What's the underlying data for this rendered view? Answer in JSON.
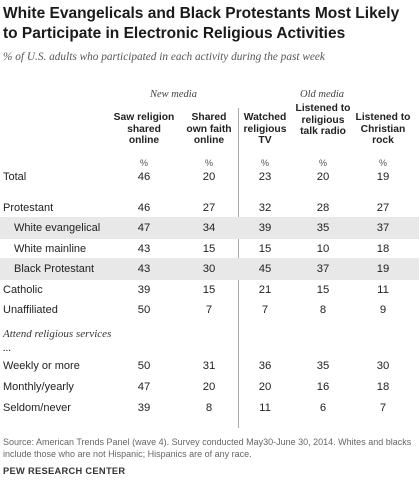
{
  "title": "White Evangelicals and Black Protestants Most Likely to Participate in Electronic Religious Activities",
  "subtitle": "% of U.S. adults who participated in each activity during the past week",
  "groups": {
    "new_media": "New media",
    "old_media": "Old media"
  },
  "columns": [
    "Saw religion shared online",
    "Shared own faith online",
    "Watched religious TV",
    "Listened to religious talk radio",
    "Listened to Christian rock"
  ],
  "pct_label": "%",
  "section_label": "Attend religious services ...",
  "source": "Source: American Trends Panel (wave 4). Survey conducted May30-June 30, 2014. Whites and blacks include those who are not Hispanic; Hispanics are of any race.",
  "footer": "PEW RESEARCH CENTER",
  "chart_data": {
    "type": "table",
    "title": "White Evangelicals and Black Protestants Most Likely to Participate in Electronic Religious Activities",
    "subtitle": "% of U.S. adults who participated in each activity during the past week",
    "columns": [
      "Saw religion shared online",
      "Shared own faith online",
      "Watched religious TV",
      "Listened to religious talk radio",
      "Listened to Christian rock"
    ],
    "rows": [
      {
        "label": "Total",
        "values": [
          46,
          20,
          23,
          20,
          19
        ]
      },
      {
        "label": "Protestant",
        "values": [
          46,
          27,
          32,
          28,
          27
        ]
      },
      {
        "label": "White evangelical",
        "values": [
          47,
          34,
          39,
          35,
          37
        ]
      },
      {
        "label": "White mainline",
        "values": [
          43,
          15,
          15,
          10,
          18
        ]
      },
      {
        "label": "Black Protestant",
        "values": [
          43,
          30,
          45,
          37,
          19
        ]
      },
      {
        "label": "Catholic",
        "values": [
          39,
          15,
          21,
          15,
          11
        ]
      },
      {
        "label": "Unaffiliated",
        "values": [
          50,
          7,
          7,
          8,
          9
        ]
      },
      {
        "label": "Weekly or more",
        "values": [
          50,
          31,
          36,
          35,
          30
        ]
      },
      {
        "label": "Monthly/yearly",
        "values": [
          47,
          20,
          20,
          16,
          18
        ]
      },
      {
        "label": "Seldom/never",
        "values": [
          39,
          8,
          11,
          6,
          7
        ]
      }
    ]
  }
}
